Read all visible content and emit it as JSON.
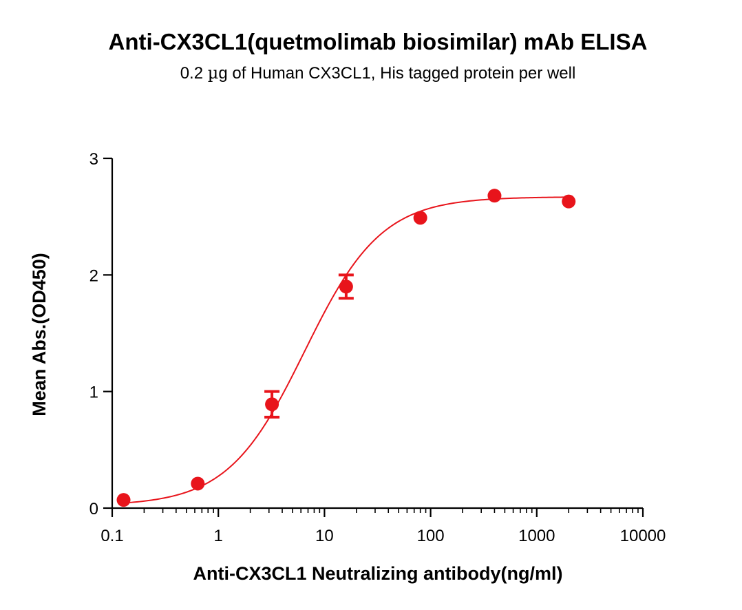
{
  "chart_data": {
    "type": "scatter",
    "title": "Anti-CX3CL1(quetmolimab biosimilar) mAb ELISA",
    "subtitle_parts": {
      "before": "0.2 ",
      "greek": "µ",
      "after": "g of Human CX3CL1, His tagged protein per well"
    },
    "xlabel": "Anti-CX3CL1 Neutralizing antibody(ng/ml)",
    "ylabel": "Mean Abs.(OD450)",
    "x_scale": "log",
    "xlim": [
      0.1,
      10000
    ],
    "ylim": [
      0,
      3
    ],
    "x_ticks": [
      0.1,
      1,
      10,
      100,
      1000,
      10000
    ],
    "x_tick_labels": [
      "0.1",
      "1",
      "10",
      "100",
      "1000",
      "10000"
    ],
    "y_ticks": [
      0,
      1,
      2,
      3
    ],
    "y_tick_labels": [
      "0",
      "1",
      "2",
      "3"
    ],
    "grid": false,
    "legend": "none",
    "color": "#e8141b",
    "series": [
      {
        "x": [
          0.128,
          0.64,
          3.2,
          16,
          80,
          400,
          2000
        ],
        "y": [
          0.07,
          0.21,
          0.89,
          1.9,
          2.49,
          2.68,
          2.63
        ],
        "error": [
          0,
          0,
          0.11,
          0.1,
          0,
          0,
          0
        ]
      }
    ],
    "fit_curve": {
      "model": "four-parameter logistic",
      "bottom": 0.02,
      "top": 2.67,
      "ec50": 6.5,
      "hill": 1.2
    }
  }
}
